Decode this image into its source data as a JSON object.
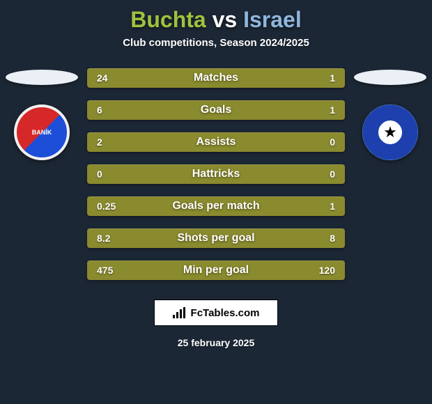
{
  "background_color": "#1c2735",
  "title": {
    "player1": "Buchta",
    "separator": "vs",
    "player2": "Israel",
    "player1_color": "#a0c13e",
    "separator_color": "#ffffff",
    "player2_color": "#8fb6de",
    "fontsize": 32
  },
  "subtitle": {
    "text": "Club competitions, Season 2024/2025",
    "color": "#ffffff",
    "fontsize": 15
  },
  "shadow_ellipse_color": "#eaf0f6",
  "crest_left_text": "BANÍK",
  "crest_right_glyph": "★",
  "stats": {
    "row_bg": "#8a8a2e",
    "label_color": "#ffffff",
    "value_color": "#ffffff",
    "label_fontsize": 16,
    "value_fontsize": 14,
    "rows": [
      {
        "left": "24",
        "label": "Matches",
        "right": "1"
      },
      {
        "left": "6",
        "label": "Goals",
        "right": "1"
      },
      {
        "left": "2",
        "label": "Assists",
        "right": "0"
      },
      {
        "left": "0",
        "label": "Hattricks",
        "right": "0"
      },
      {
        "left": "0.25",
        "label": "Goals per match",
        "right": "1"
      },
      {
        "left": "8.2",
        "label": "Shots per goal",
        "right": "8"
      },
      {
        "left": "475",
        "label": "Min per goal",
        "right": "120"
      }
    ]
  },
  "brand": {
    "text": "FcTables.com"
  },
  "date": {
    "text": "25 february 2025",
    "color": "#ffffff"
  }
}
